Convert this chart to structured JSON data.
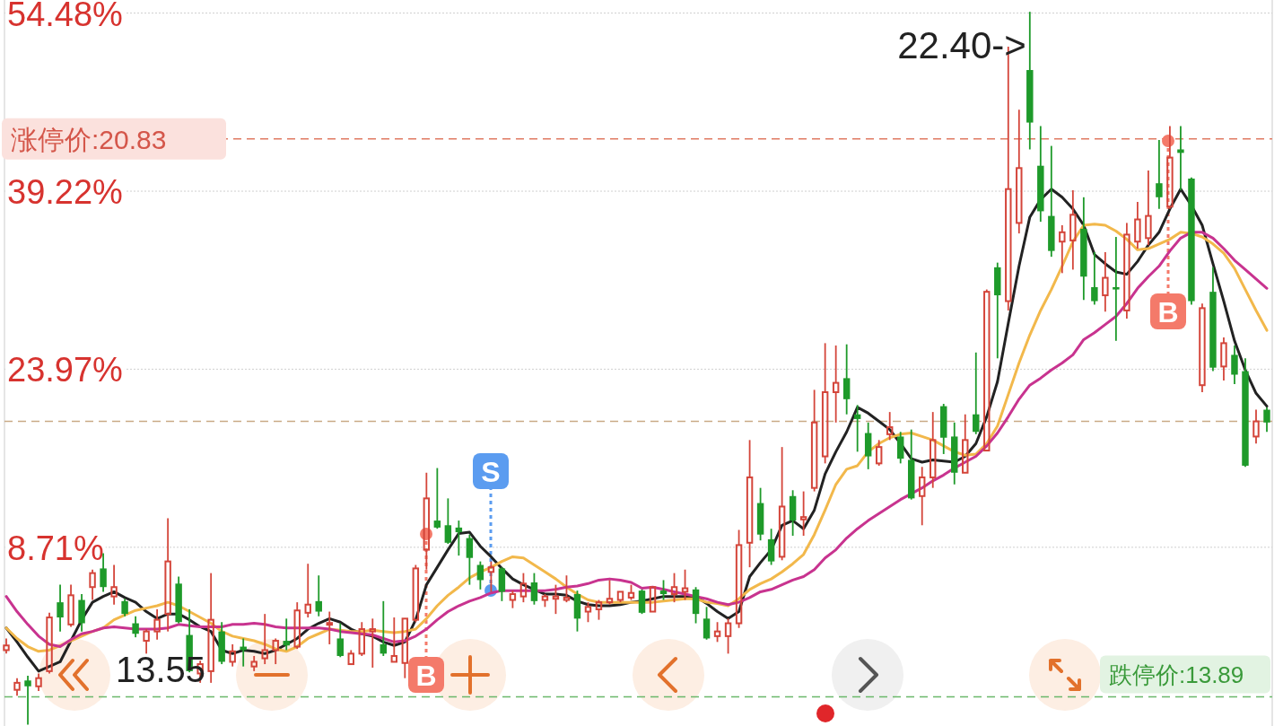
{
  "chart_data": {
    "type": "candlestick",
    "tick_labels": "y",
    "grid": "y",
    "colors": [
      "#d4453a",
      "#d4453a",
      "#1e9a2a",
      "#d4453a",
      "#d4453a",
      "#1e9a2a",
      "#d4453a",
      "#1e9a2a",
      "#d4453a",
      "#1e9a2a",
      "#d4453a",
      "#1e9a2a",
      "#1e9a2a",
      "#d4453a",
      "#d4453a",
      "#d4453a",
      "#1e9a2a",
      "#1e9a2a",
      "#d4453a",
      "#d4453a",
      "#1e9a2a",
      "#d4453a",
      "#1e9a2a",
      "#d4453a",
      "#d4453a",
      "#d4453a",
      "#1e9a2a",
      "#d4453a",
      "#d4453a",
      "#1e9a2a",
      "#d4453a",
      "#1e9a2a",
      "#d4453a",
      "#d4453a",
      "#d4453a",
      "#1e9a2a",
      "#d4453a",
      "#d4453a",
      "#d4453a",
      "#d4453a",
      "#1e9a2a",
      "#1e9a2a",
      "#1e9a2a",
      "#1e9a2a",
      "#1e9a2a",
      "#d4453a",
      "#1e9a2a",
      "#d4453a",
      "#d4453a",
      "#1e9a2a",
      "#d4453a",
      "#d4453a",
      "#d4453a",
      "#1e9a2a",
      "#d4453a",
      "#d4453a",
      "#d4453a",
      "#d4453a",
      "#d4453a",
      "#1e9a2a",
      "#d4453a",
      "#1e9a2a",
      "#d4453a",
      "#d4453a",
      "#1e9a2a",
      "#1e9a2a",
      "#d4453a",
      "#d4453a",
      "#d4453a",
      "#d4453a",
      "#1e9a2a",
      "#1e9a2a",
      "#d4453a",
      "#1e9a2a",
      "#d4453a",
      "#d4453a",
      "#d4453a",
      "#d4453a",
      "#1e9a2a",
      "#1e9a2a",
      "#1e9a2a",
      "#d4453a",
      "#d4453a",
      "#1e9a2a",
      "#1e9a2a",
      "#d4453a",
      "#d4453a",
      "#1e9a2a",
      "#1e9a2a",
      "#d4453a",
      "#1e9a2a",
      "#d4453a",
      "#1e9a2a",
      "#d4453a",
      "#d4453a",
      "#1e9a2a",
      "#1e9a2a",
      "#1e9a2a",
      "#d4453a",
      "#d4453a",
      "#1e9a2a",
      "#1e9a2a",
      "#d4453a",
      "#1e9a2a",
      "#d4453a",
      "#d4453a",
      "#d4453a",
      "#1e9a2a",
      "#d4453a",
      "#1e9a2a",
      "#1e9a2a",
      "#d4453a",
      "#1e9a2a",
      "#d4453a",
      "#1e9a2a",
      "#1e9a2a",
      "#d4453a",
      "#1e9a2a"
    ],
    "categories": [
      null,
      null,
      null,
      null,
      null,
      null,
      null,
      null,
      null,
      null,
      null,
      null,
      null,
      null,
      null,
      null,
      null,
      null,
      null,
      null,
      null,
      null,
      null,
      null,
      null,
      null,
      null,
      null,
      null,
      null,
      null,
      null,
      null,
      null,
      null,
      null,
      null,
      null,
      null,
      null,
      null,
      null,
      null,
      null,
      null,
      null,
      null,
      null,
      null,
      null,
      null,
      null,
      null,
      null,
      null,
      null,
      null,
      null,
      null,
      null,
      null,
      null,
      null,
      null,
      null,
      null,
      null,
      null,
      null,
      null,
      null,
      null,
      null,
      null,
      null,
      null,
      null,
      null,
      null,
      null,
      null,
      null,
      null,
      null,
      null,
      null,
      null,
      null,
      null,
      null,
      null,
      null,
      null,
      null,
      null,
      null,
      null,
      null,
      null,
      null,
      null,
      null,
      null,
      null,
      null,
      null,
      null,
      null,
      null,
      null,
      null,
      null,
      null,
      null,
      null,
      null,
      null,
      null
    ],
    "ohlc": [
      [
        -0.1,
        0.9,
        -0.4,
        0.3
      ],
      [
        -3.5,
        -2.5,
        -4.0,
        -2.9
      ],
      [
        -2.7,
        -2.3,
        -6.49,
        -3.2
      ],
      [
        -3.2,
        -2.1,
        -3.6,
        -2.5
      ],
      [
        -1.9,
        3.1,
        -2.1,
        2.7
      ],
      [
        4.0,
        5.5,
        1.5,
        2.7
      ],
      [
        2.1,
        5.5,
        1.9,
        4.6
      ],
      [
        4.2,
        4.7,
        1.5,
        2.2
      ],
      [
        5.3,
        6.8,
        4.2,
        6.5
      ],
      [
        6.9,
        8.2,
        4.9,
        5.3
      ],
      [
        4.5,
        7.2,
        3.8,
        5.3
      ],
      [
        4.1,
        4.3,
        2.8,
        3.0
      ],
      [
        2.2,
        2.8,
        1.0,
        1.3
      ],
      [
        0.7,
        1.7,
        -0.4,
        1.5
      ],
      [
        1.5,
        3.4,
        0.8,
        2.5
      ],
      [
        3.0,
        11.2,
        1.5,
        7.5
      ],
      [
        5.6,
        6.2,
        2.2,
        2.3
      ],
      [
        1.2,
        3.4,
        -2.0,
        -1.9
      ],
      [
        -2.1,
        -1.0,
        -2.9,
        -1.3
      ],
      [
        -1.9,
        6.5,
        -2.9,
        2.5
      ],
      [
        1.5,
        2.3,
        -1.3,
        -1.1
      ],
      [
        -1.1,
        0.4,
        -1.5,
        -0.2
      ],
      [
        0.2,
        0.9,
        -1.5,
        -0.1
      ],
      [
        -1.5,
        -0.6,
        -1.9,
        -1.1
      ],
      [
        -0.8,
        3.0,
        -1.3,
        -0.1
      ],
      [
        -0.1,
        0.9,
        -1.3,
        0.7
      ],
      [
        0.7,
        2.6,
        -0.1,
        0.3
      ],
      [
        0.2,
        4.0,
        0.0,
        3.3
      ],
      [
        3.1,
        7.3,
        2.7,
        3.8
      ],
      [
        4.1,
        6.3,
        2.8,
        3.2
      ],
      [
        2.1,
        3.2,
        0.4,
        2.2
      ],
      [
        0.9,
        2.2,
        -0.7,
        -0.6
      ],
      [
        -1.3,
        -0.1,
        -1.3,
        -0.4
      ],
      [
        -0.4,
        2.3,
        -0.6,
        1.7
      ],
      [
        1.5,
        2.6,
        -1.6,
        1.7
      ],
      [
        0.4,
        4.1,
        -0.6,
        -0.4
      ],
      [
        -1.1,
        2.7,
        -1.2,
        -0.6
      ],
      [
        -1.2,
        2.6,
        -2.5,
        2.6
      ],
      [
        2.5,
        7.2,
        2.3,
        6.9
      ],
      [
        8.5,
        15.1,
        6.8,
        12.9
      ],
      [
        11.0,
        15.5,
        10.3,
        10.4
      ],
      [
        10.6,
        12.9,
        9.0,
        9.1
      ],
      [
        10.4,
        11.0,
        8.0,
        10.0
      ],
      [
        9.5,
        9.8,
        5.5,
        7.8
      ],
      [
        7.2,
        7.5,
        5.1,
        5.9
      ],
      [
        6.6,
        7.5,
        4.9,
        7.0
      ],
      [
        6.9,
        7.0,
        4.1,
        4.9
      ],
      [
        4.2,
        5.0,
        3.5,
        4.7
      ],
      [
        4.5,
        6.5,
        4.0,
        5.6
      ],
      [
        5.7,
        6.5,
        3.8,
        4.1
      ],
      [
        4.2,
        4.7,
        3.6,
        4.5
      ],
      [
        4.3,
        5.5,
        3.0,
        4.5
      ],
      [
        4.2,
        6.3,
        4.0,
        4.4
      ],
      [
        4.7,
        5.0,
        1.5,
        2.6
      ],
      [
        3.2,
        4.0,
        2.3,
        3.6
      ],
      [
        3.4,
        4.2,
        2.5,
        4.0
      ],
      [
        4.0,
        5.9,
        3.8,
        4.3
      ],
      [
        4.2,
        5.0,
        4.0,
        4.9
      ],
      [
        4.4,
        5.5,
        4.2,
        4.8
      ],
      [
        5.0,
        5.1,
        3.0,
        3.1
      ],
      [
        3.2,
        5.4,
        3.1,
        5.3
      ],
      [
        5.0,
        5.9,
        4.2,
        4.7
      ],
      [
        4.7,
        6.5,
        4.0,
        5.3
      ],
      [
        4.9,
        6.8,
        4.2,
        5.2
      ],
      [
        5.1,
        5.3,
        2.2,
        3.0
      ],
      [
        2.6,
        3.6,
        0.8,
        0.9
      ],
      [
        1.1,
        2.3,
        0.6,
        1.5
      ],
      [
        1.1,
        2.6,
        -0.4,
        2.2
      ],
      [
        2.2,
        10.2,
        1.8,
        8.9
      ],
      [
        9.1,
        17.9,
        7.0,
        14.7
      ],
      [
        12.5,
        13.8,
        9.3,
        9.8
      ],
      [
        9.4,
        10.3,
        7.2,
        7.5
      ],
      [
        7.9,
        17.3,
        7.6,
        12.2
      ],
      [
        13.1,
        13.6,
        9.7,
        11.0
      ],
      [
        11.1,
        13.5,
        9.7,
        11.3
      ],
      [
        13.8,
        22.2,
        13.5,
        19.4
      ],
      [
        16.5,
        26.2,
        15.9,
        22.0
      ],
      [
        22.0,
        26.0,
        19.4,
        22.8
      ],
      [
        23.2,
        26.1,
        20.1,
        21.4
      ],
      [
        20.1,
        20.9,
        16.9,
        19.7
      ],
      [
        18.5,
        19.4,
        15.4,
        16.5
      ],
      [
        15.9,
        17.9,
        15.7,
        17.3
      ],
      [
        18.4,
        20.3,
        17.9,
        19.0
      ],
      [
        18.2,
        18.6,
        15.9,
        16.3
      ],
      [
        16.2,
        18.8,
        12.8,
        12.9
      ],
      [
        13.1,
        15.6,
        10.6,
        14.7
      ],
      [
        14.7,
        20.3,
        13.8,
        17.9
      ],
      [
        20.8,
        21.0,
        16.7,
        18.1
      ],
      [
        18.2,
        19.4,
        14.1,
        15.1
      ],
      [
        15.1,
        20.1,
        15.0,
        17.9
      ],
      [
        20.1,
        25.4,
        18.4,
        18.6
      ],
      [
        17.0,
        30.8,
        17.0,
        30.6
      ],
      [
        32.7,
        33.1,
        24.9,
        30.3
      ],
      [
        29.8,
        51.6,
        29.0,
        39.4
      ],
      [
        36.5,
        46.2,
        35.6,
        41.2
      ],
      [
        49.6,
        54.59,
        42.8,
        45.1
      ],
      [
        41.4,
        44.8,
        36.6,
        37.5
      ],
      [
        37.1,
        43.1,
        33.6,
        34.1
      ],
      [
        34.9,
        36.3,
        32.2,
        35.7
      ],
      [
        35.0,
        39.3,
        32.5,
        37.2
      ],
      [
        36.0,
        38.7,
        29.9,
        31.9
      ],
      [
        31.0,
        34.0,
        29.5,
        29.8
      ],
      [
        30.3,
        34.0,
        28.9,
        31.8
      ],
      [
        31.0,
        35.3,
        26.4,
        30.8
      ],
      [
        29.0,
        36.5,
        28.3,
        35.5
      ],
      [
        34.9,
        38.3,
        34.3,
        36.8
      ],
      [
        35.2,
        41.0,
        34.6,
        37.1
      ],
      [
        39.9,
        43.6,
        37.7,
        38.7
      ],
      [
        37.9,
        44.8,
        37.7,
        42.1
      ],
      [
        42.8,
        44.8,
        39.3,
        42.5
      ],
      [
        40.3,
        40.4,
        29.5,
        29.8
      ],
      [
        22.6,
        29.6,
        22.0,
        29.2
      ],
      [
        30.6,
        32.7,
        23.8,
        24.1
      ],
      [
        24.2,
        26.7,
        23.0,
        26.2
      ],
      [
        25.2,
        26.0,
        22.7,
        23.5
      ],
      [
        23.8,
        24.9,
        15.6,
        15.7
      ],
      [
        18.2,
        20.5,
        17.6,
        19.5
      ],
      [
        20.5,
        20.7,
        18.6,
        19.4
      ]
    ],
    "series": [
      {
        "type": "line",
        "color": "#222222",
        "values": [
          1.8,
          0.6,
          -0.7,
          -1.9,
          -1.5,
          -1.1,
          0.7,
          2.5,
          4.0,
          4.5,
          4.9,
          4.4,
          4.0,
          3.2,
          2.6,
          3.0,
          3.0,
          2.5,
          1.9,
          1.5,
          -0.1,
          -0.4,
          -0.1,
          -0.2,
          -0.4,
          -0.1,
          0.4,
          0.9,
          1.7,
          2.2,
          2.6,
          2.3,
          1.7,
          1.3,
          1.1,
          0.6,
          0.3,
          0.6,
          2.5,
          5.5,
          7.0,
          8.5,
          9.9,
          10.0,
          8.8,
          7.9,
          6.9,
          6.0,
          5.5,
          5.1,
          4.7,
          4.7,
          4.6,
          4.1,
          3.8,
          3.7,
          3.7,
          3.8,
          4.0,
          4.1,
          4.3,
          4.5,
          4.5,
          4.5,
          4.5,
          3.9,
          3.2,
          2.6,
          3.2,
          6.2,
          7.4,
          8.5,
          10.6,
          11.0,
          10.3,
          11.9,
          15.0,
          16.9,
          18.6,
          20.7,
          20.2,
          19.5,
          18.8,
          17.6,
          16.3,
          16.0,
          16.2,
          16.1,
          16.0,
          16.5,
          17.6,
          19.9,
          22.9,
          27.9,
          32.8,
          37.0,
          38.5,
          39.4,
          38.7,
          37.7,
          36.3,
          33.8,
          33.0,
          32.3,
          32.1,
          33.2,
          34.6,
          35.7,
          37.7,
          39.4,
          38.0,
          36.3,
          33.0,
          29.8,
          26.4,
          23.9,
          21.9,
          20.8
        ]
      },
      {
        "type": "line",
        "color": "#f2b84b",
        "values": [
          1.8,
          0.9,
          0.2,
          -0.2,
          -0.1,
          0.3,
          0.7,
          1.1,
          1.5,
          1.8,
          2.5,
          2.9,
          3.3,
          3.5,
          3.7,
          4.0,
          3.7,
          3.2,
          2.7,
          2.2,
          1.5,
          1.1,
          0.9,
          0.7,
          0.4,
          0.0,
          -0.2,
          0.2,
          0.9,
          1.3,
          1.7,
          1.6,
          1.5,
          1.5,
          1.6,
          1.5,
          1.4,
          1.5,
          1.7,
          2.6,
          3.7,
          4.6,
          5.3,
          6.1,
          6.6,
          7.0,
          7.5,
          7.9,
          7.8,
          7.2,
          6.6,
          6.0,
          5.3,
          4.7,
          4.2,
          4.0,
          4.0,
          4.0,
          4.0,
          4.0,
          4.0,
          4.1,
          4.2,
          4.3,
          4.3,
          4.0,
          3.9,
          3.7,
          4.3,
          5.1,
          5.6,
          6.0,
          6.6,
          7.3,
          8.1,
          9.8,
          11.9,
          14.1,
          15.4,
          15.7,
          16.9,
          17.6,
          18.1,
          18.4,
          18.5,
          18.2,
          17.9,
          17.4,
          16.9,
          16.6,
          16.7,
          17.6,
          19.1,
          21.8,
          24.5,
          26.9,
          29.0,
          30.8,
          32.8,
          34.9,
          36.3,
          36.4,
          36.3,
          35.8,
          35.1,
          34.2,
          34.3,
          34.7,
          35.1,
          35.7,
          35.6,
          35.3,
          34.7,
          33.9,
          32.6,
          30.8,
          29.0,
          27.3
        ]
      },
      {
        "type": "line",
        "color": "#c8338f",
        "values": [
          4.5,
          3.2,
          2.1,
          1.1,
          0.4,
          0.2,
          0.8,
          1.3,
          1.5,
          1.8,
          1.9,
          1.8,
          1.7,
          1.7,
          1.7,
          1.8,
          2.1,
          2.0,
          1.9,
          1.9,
          1.9,
          2.1,
          2.1,
          2.2,
          2.1,
          1.9,
          1.8,
          1.8,
          1.8,
          1.8,
          1.7,
          1.5,
          1.4,
          1.3,
          1.2,
          0.9,
          0.6,
          0.7,
          1.1,
          1.7,
          2.5,
          3.2,
          3.7,
          4.1,
          4.4,
          4.8,
          5.0,
          5.0,
          5.0,
          5.0,
          5.0,
          5.1,
          5.3,
          5.4,
          5.6,
          5.9,
          6.0,
          5.9,
          5.7,
          5.2,
          5.3,
          5.1,
          4.9,
          4.7,
          4.5,
          4.3,
          4.0,
          3.8,
          4.0,
          4.4,
          4.9,
          5.1,
          5.5,
          5.9,
          6.2,
          6.8,
          7.8,
          8.5,
          9.5,
          10.3,
          11.0,
          11.6,
          12.2,
          12.8,
          13.3,
          13.8,
          14.4,
          14.9,
          15.5,
          16.0,
          16.5,
          17.4,
          18.5,
          19.9,
          21.4,
          22.6,
          23.2,
          23.9,
          24.5,
          25.2,
          26.5,
          27.1,
          27.8,
          28.5,
          29.6,
          30.9,
          31.9,
          32.8,
          34.1,
          35.2,
          35.7,
          35.7,
          35.2,
          34.3,
          33.3,
          32.5,
          31.7,
          30.9
        ]
      }
    ],
    "ylim": [
      -6.6,
      55.6
    ],
    "yticks": [
      {
        "value": 54.48,
        "label": "54.48%"
      },
      {
        "value": 39.22,
        "label": "39.22%"
      },
      {
        "value": 23.97,
        "label": "23.97%"
      },
      {
        "value": 8.71,
        "label": "8.71%"
      }
    ],
    "ref_lines": [
      {
        "axis": "y",
        "value": 43.7,
        "color": "#e07a62",
        "line_style": "dashed"
      },
      {
        "axis": "y",
        "value": 19.5,
        "color": "#c9aa86",
        "line_style": "dashed"
      },
      {
        "axis": "y",
        "value": -4.1,
        "color": "#6ab86a",
        "line_style": "dashed"
      }
    ],
    "annotations": [
      "22.40->",
      "13.55",
      "B",
      "S",
      "B",
      "涨停价:20.83",
      "跌停价:13.89"
    ]
  }
}
